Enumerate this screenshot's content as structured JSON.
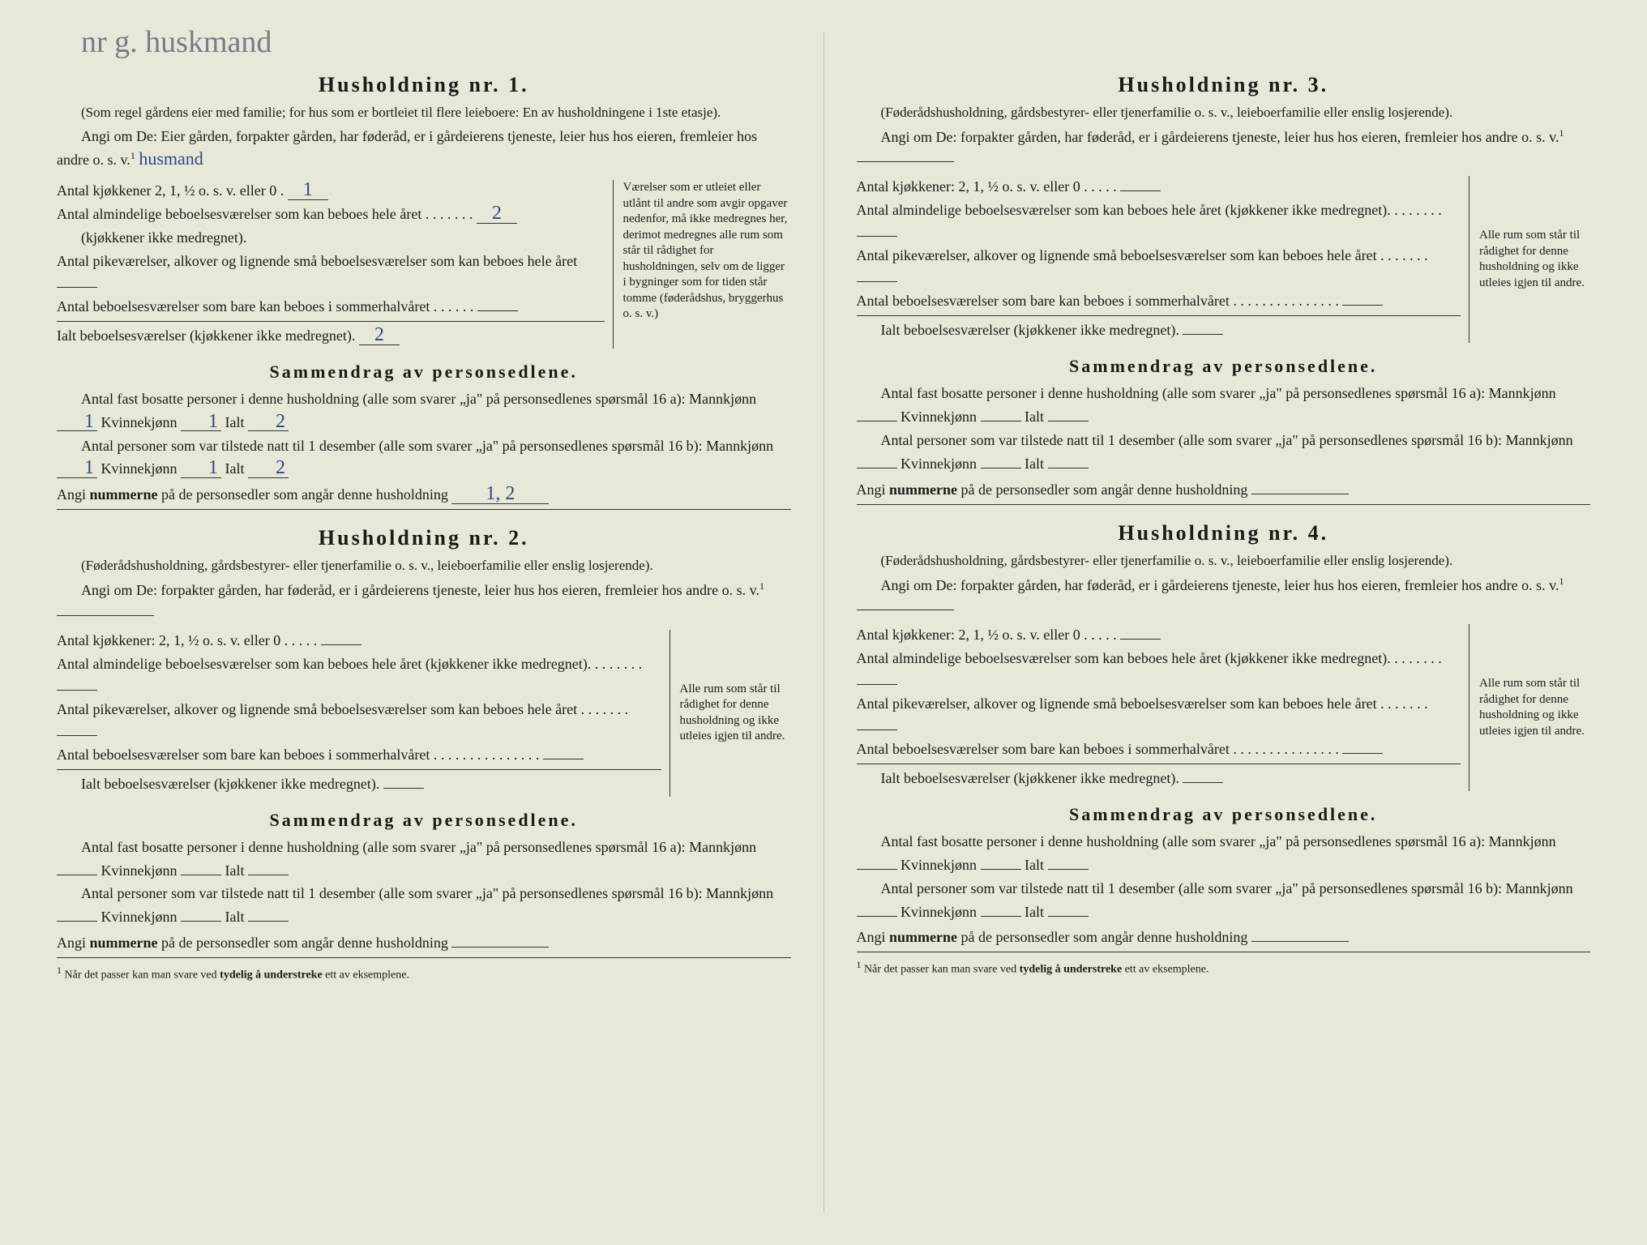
{
  "handwriting_top": "nr g. huskmand",
  "hw_inline": "husmand",
  "households": [
    {
      "title": "Husholdning nr. 1.",
      "note": "(Som regel gårdens eier med familie; for hus som er bortleiet til flere leieboere: En av husholdningene i 1ste etasje).",
      "angi": "Angi om De: Eier gården, forpakter gården, har føderåd, er i gårdeierens tjeneste, leier hus hos eieren, fremleier hos andre o. s. v.",
      "rooms": {
        "kitchens_label": "Antal kjøkkener 2, 1, ½ o. s. v. eller 0",
        "kitchens_val": "1",
        "ordinary_label": "Antal almindelige beboelsesværelser som kan beboes hele året",
        "ordinary_sub": "(kjøkkener ikke medregnet).",
        "ordinary_val": "2",
        "small_label": "Antal pikeværelser, alkover og lignende små beboelsesværelser som kan beboes hele året",
        "small_val": "",
        "summer_label": "Antal beboelsesværelser som bare kan beboes i sommerhalvåret",
        "summer_val": "",
        "total_label": "Ialt beboelsesværelser (kjøkkener ikke medregnet).",
        "total_val": "2"
      },
      "aside_wide": "Værelser som er utleiet eller utlånt til andre som avgir opgaver nedenfor, må ikke medregnes her, derimot medregnes alle rum som står til rådighet for husholdningen, selv om de ligger i bygninger som for tiden står tomme (føderådshus, bryggerhus o. s. v.)",
      "persons": {
        "line1": "Antal fast bosatte personer i denne husholdning (alle som svarer „ja\" på personsedlenes spørsmål 16 a): Mannkjønn",
        "m1": "1",
        "k_label": "Kvinnekjønn",
        "k1": "1",
        "i_label": "Ialt",
        "i1": "2",
        "line2": "Antal personer som var tilstede natt til 1 desember (alle som svarer „ja\" på personsedlenes spørsmål 16 b): Mannkjønn",
        "m2": "1",
        "k2": "1",
        "i2": "2",
        "angi_num": "Angi ",
        "angi_num_bold": "nummerne",
        "angi_num_rest": " på de personsedler som angår denne husholdning",
        "num_val": "1, 2"
      }
    },
    {
      "title": "Husholdning nr. 2.",
      "note": "(Føderådshusholdning, gårdsbestyrer- eller tjenerfamilie o. s. v., leieboerfamilie eller enslig losjerende).",
      "angi": "Angi om De: forpakter gården, har føderåd, er i gårdeierens tjeneste, leier hus hos eieren, fremleier hos andre o. s. v.",
      "rooms": {
        "kitchens_label": "Antal kjøkkener: 2, 1, ½ o. s. v. eller 0",
        "kitchens_val": "",
        "ordinary_label": "Antal almindelige beboelsesværelser som kan beboes hele året",
        "ordinary_sub": "(kjøkkener ikke medregnet).",
        "ordinary_val": "",
        "small_label": "Antal pikeværelser, alkover og lignende små beboelsesværelser som kan beboes hele året",
        "small_val": "",
        "summer_label": "Antal beboelsesværelser som bare kan beboes i sommerhalvåret",
        "summer_val": "",
        "total_label": "Ialt beboelsesværelser (kjøkkener ikke medregnet).",
        "total_val": ""
      },
      "aside": "Alle rum som står til rådighet for denne husholdning og ikke utleies igjen til andre.",
      "persons": {
        "line1": "Antal fast bosatte personer i denne husholdning (alle som svarer „ja\" på personsedlenes spørsmål 16 a): Mannkjønn",
        "m1": "",
        "k_label": "Kvinnekjønn",
        "k1": "",
        "i_label": "Ialt",
        "i1": "",
        "line2": "Antal personer som var tilstede natt til 1 desember (alle som svarer „ja\" på personsedlenes spørsmål 16 b): Mannkjønn",
        "m2": "",
        "k2": "",
        "i2": "",
        "angi_num": "Angi ",
        "angi_num_bold": "nummerne",
        "angi_num_rest": " på de personsedler som angår denne husholdning",
        "num_val": ""
      }
    },
    {
      "title": "Husholdning nr. 3.",
      "note": "(Føderådshusholdning, gårdsbestyrer- eller tjenerfamilie o. s. v., leieboerfamilie eller enslig losjerende).",
      "angi": "Angi om De: forpakter gården, har føderåd, er i gårdeierens tjeneste, leier hus hos eieren, fremleier hos andre o. s. v.",
      "rooms": {
        "kitchens_label": "Antal kjøkkener: 2, 1, ½ o. s. v. eller 0",
        "kitchens_val": "",
        "ordinary_label": "Antal almindelige beboelsesværelser som kan beboes hele året",
        "ordinary_sub": "(kjøkkener ikke medregnet).",
        "ordinary_val": "",
        "small_label": "Antal pikeværelser, alkover og lignende små beboelsesværelser som kan beboes hele året",
        "small_val": "",
        "summer_label": "Antal beboelsesværelser som bare kan beboes i sommerhalvåret",
        "summer_val": "",
        "total_label": "Ialt beboelsesværelser (kjøkkener ikke medregnet).",
        "total_val": ""
      },
      "aside": "Alle rum som står til rådighet for denne husholdning og ikke utleies igjen til andre.",
      "persons": {
        "line1": "Antal fast bosatte personer i denne husholdning (alle som svarer „ja\" på personsedlenes spørsmål 16 a): Mannkjønn",
        "m1": "",
        "k_label": "Kvinnekjønn",
        "k1": "",
        "i_label": "Ialt",
        "i1": "",
        "line2": "Antal personer som var tilstede natt til 1 desember (alle som svarer „ja\" på personsedlenes spørsmål 16 b): Mannkjønn",
        "m2": "",
        "k2": "",
        "i2": "",
        "angi_num": "Angi ",
        "angi_num_bold": "nummerne",
        "angi_num_rest": " på de personsedler som angår denne husholdning",
        "num_val": ""
      }
    },
    {
      "title": "Husholdning nr. 4.",
      "note": "(Føderådshusholdning, gårdsbestyrer- eller tjenerfamilie o. s. v., leieboerfamilie eller enslig losjerende).",
      "angi": "Angi om De: forpakter gården, har føderåd, er i gårdeierens tjeneste, leier hus hos eieren, fremleier hos andre o. s. v.",
      "rooms": {
        "kitchens_label": "Antal kjøkkener: 2, 1, ½ o. s. v. eller 0",
        "kitchens_val": "",
        "ordinary_label": "Antal almindelige beboelsesværelser som kan beboes hele året",
        "ordinary_sub": "(kjøkkener ikke medregnet).",
        "ordinary_val": "",
        "small_label": "Antal pikeværelser, alkover og lignende små beboelsesværelser som kan beboes hele året",
        "small_val": "",
        "summer_label": "Antal beboelsesværelser som bare kan beboes i sommerhalvåret",
        "summer_val": "",
        "total_label": "Ialt beboelsesværelser (kjøkkener ikke medregnet).",
        "total_val": ""
      },
      "aside": "Alle rum som står til rådighet for denne husholdning og ikke utleies igjen til andre.",
      "persons": {
        "line1": "Antal fast bosatte personer i denne husholdning (alle som svarer „ja\" på personsedlenes spørsmål 16 a): Mannkjønn",
        "m1": "",
        "k_label": "Kvinnekjønn",
        "k1": "",
        "i_label": "Ialt",
        "i1": "",
        "line2": "Antal personer som var tilstede natt til 1 desember (alle som svarer „ja\" på personsedlenes spørsmål 16 b): Mannkjønn",
        "m2": "",
        "k2": "",
        "i2": "",
        "angi_num": "Angi ",
        "angi_num_bold": "nummerne",
        "angi_num_rest": " på de personsedler som angår denne husholdning",
        "num_val": ""
      }
    }
  ],
  "sammendrag_title": "Sammendrag av personsedlene.",
  "footnote_sup": "1",
  "footnote": " Når det passer kan man svare ved ",
  "footnote_bold": "tydelig å understreke",
  "footnote_rest": " ett av eksemplene.",
  "sup1": "1"
}
